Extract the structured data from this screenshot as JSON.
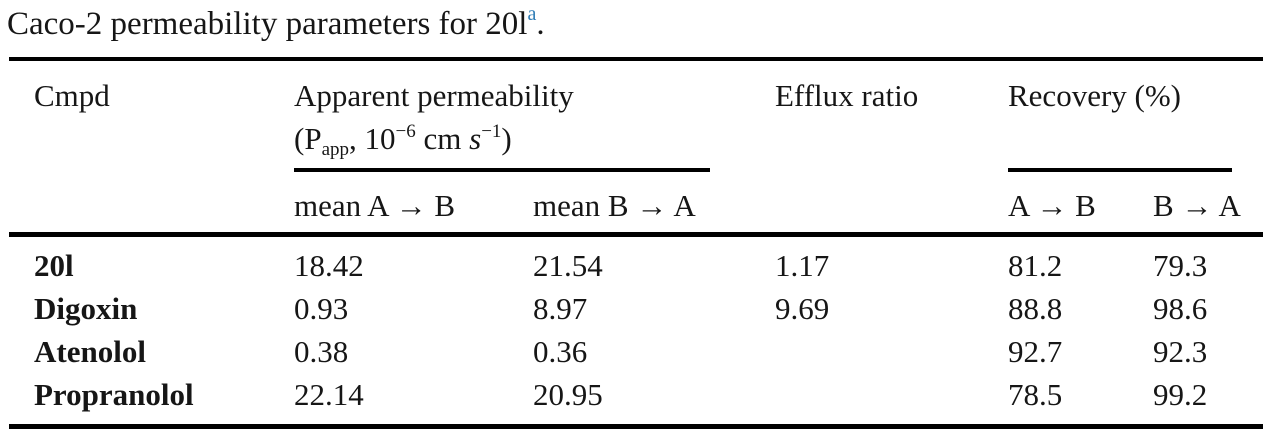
{
  "title": {
    "text": "Caco-2 permeability parameters for 20l",
    "footnote_marker": "a",
    "period": "."
  },
  "colors": {
    "text": "#161616",
    "rule": "#000000",
    "footnote_link": "#2e7cb5",
    "background": "#ffffff"
  },
  "table": {
    "header": {
      "cmpd": "Cmpd",
      "apparent_line1": "Apparent permeability",
      "apparent_units": {
        "prefix": "(P",
        "sub": "app",
        "mid": ", 10",
        "sup1": "−6",
        "cm": " cm ",
        "s_italic": "s",
        "sup2": "−1",
        "suffix": ")"
      },
      "efflux_ratio": "Efflux ratio",
      "recovery": "Recovery (%)"
    },
    "subheader": {
      "mean_ab": "mean A → B",
      "mean_ba": "mean B → A",
      "rec_ab": "A → B",
      "rec_ba": "B → A"
    },
    "rows": [
      {
        "cmpd": "20l",
        "mean_ab": "18.42",
        "mean_ba": "21.54",
        "efflux": "1.17",
        "rec_ab": "81.2",
        "rec_ba": "79.3"
      },
      {
        "cmpd": "Digoxin",
        "mean_ab": "0.93",
        "mean_ba": "8.97",
        "efflux": "9.69",
        "rec_ab": "88.8",
        "rec_ba": "98.6"
      },
      {
        "cmpd": "Atenolol",
        "mean_ab": "0.38",
        "mean_ba": "0.36",
        "efflux": "",
        "rec_ab": "92.7",
        "rec_ba": "92.3"
      },
      {
        "cmpd": "Propranolol",
        "mean_ab": "22.14",
        "mean_ba": "20.95",
        "efflux": "",
        "rec_ab": "78.5",
        "rec_ba": "99.2"
      }
    ]
  }
}
